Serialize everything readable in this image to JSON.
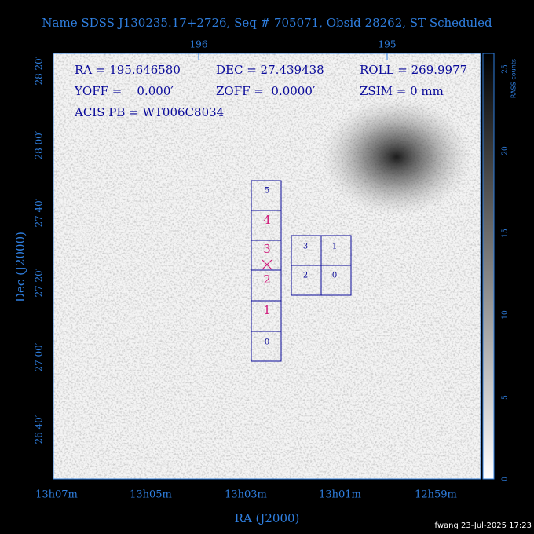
{
  "title": "Name SDSS J130235.17+2726, Seq # 705071, Obsid 28262, ST Scheduled",
  "top_axis": {
    "labels": [
      "196",
      "195"
    ]
  },
  "left_axis": {
    "label": "Dec (J2000)",
    "labels": [
      "28 20′",
      "28 00′",
      "27 40′",
      "27 20′",
      "27 00′",
      "26 40′"
    ]
  },
  "bottom_axis": {
    "label": "RA (J2000)",
    "labels": [
      "13h07m",
      "13h05m",
      "13h03m",
      "13h01m",
      "12h59m"
    ]
  },
  "info": {
    "ra": "RA = 195.646580",
    "dec": "DEC = 27.439438",
    "roll": "ROLL = 269.9977",
    "yoff": "YOFF =    0.000′",
    "zoff": "ZOFF =  0.0000′",
    "zsim": "ZSIM = 0 mm",
    "acis_pb": "ACIS PB = WT006C8034"
  },
  "chips": {
    "column": [
      "5",
      "4",
      "3",
      "2",
      "1",
      "0"
    ],
    "square": [
      "3",
      "1",
      "2",
      "0"
    ]
  },
  "colorbar": {
    "label": "RASS counts",
    "labels": [
      "0",
      "5",
      "10",
      "15",
      "20",
      "25"
    ]
  },
  "footer": "fwang 23-Jul-2025 17:23"
}
